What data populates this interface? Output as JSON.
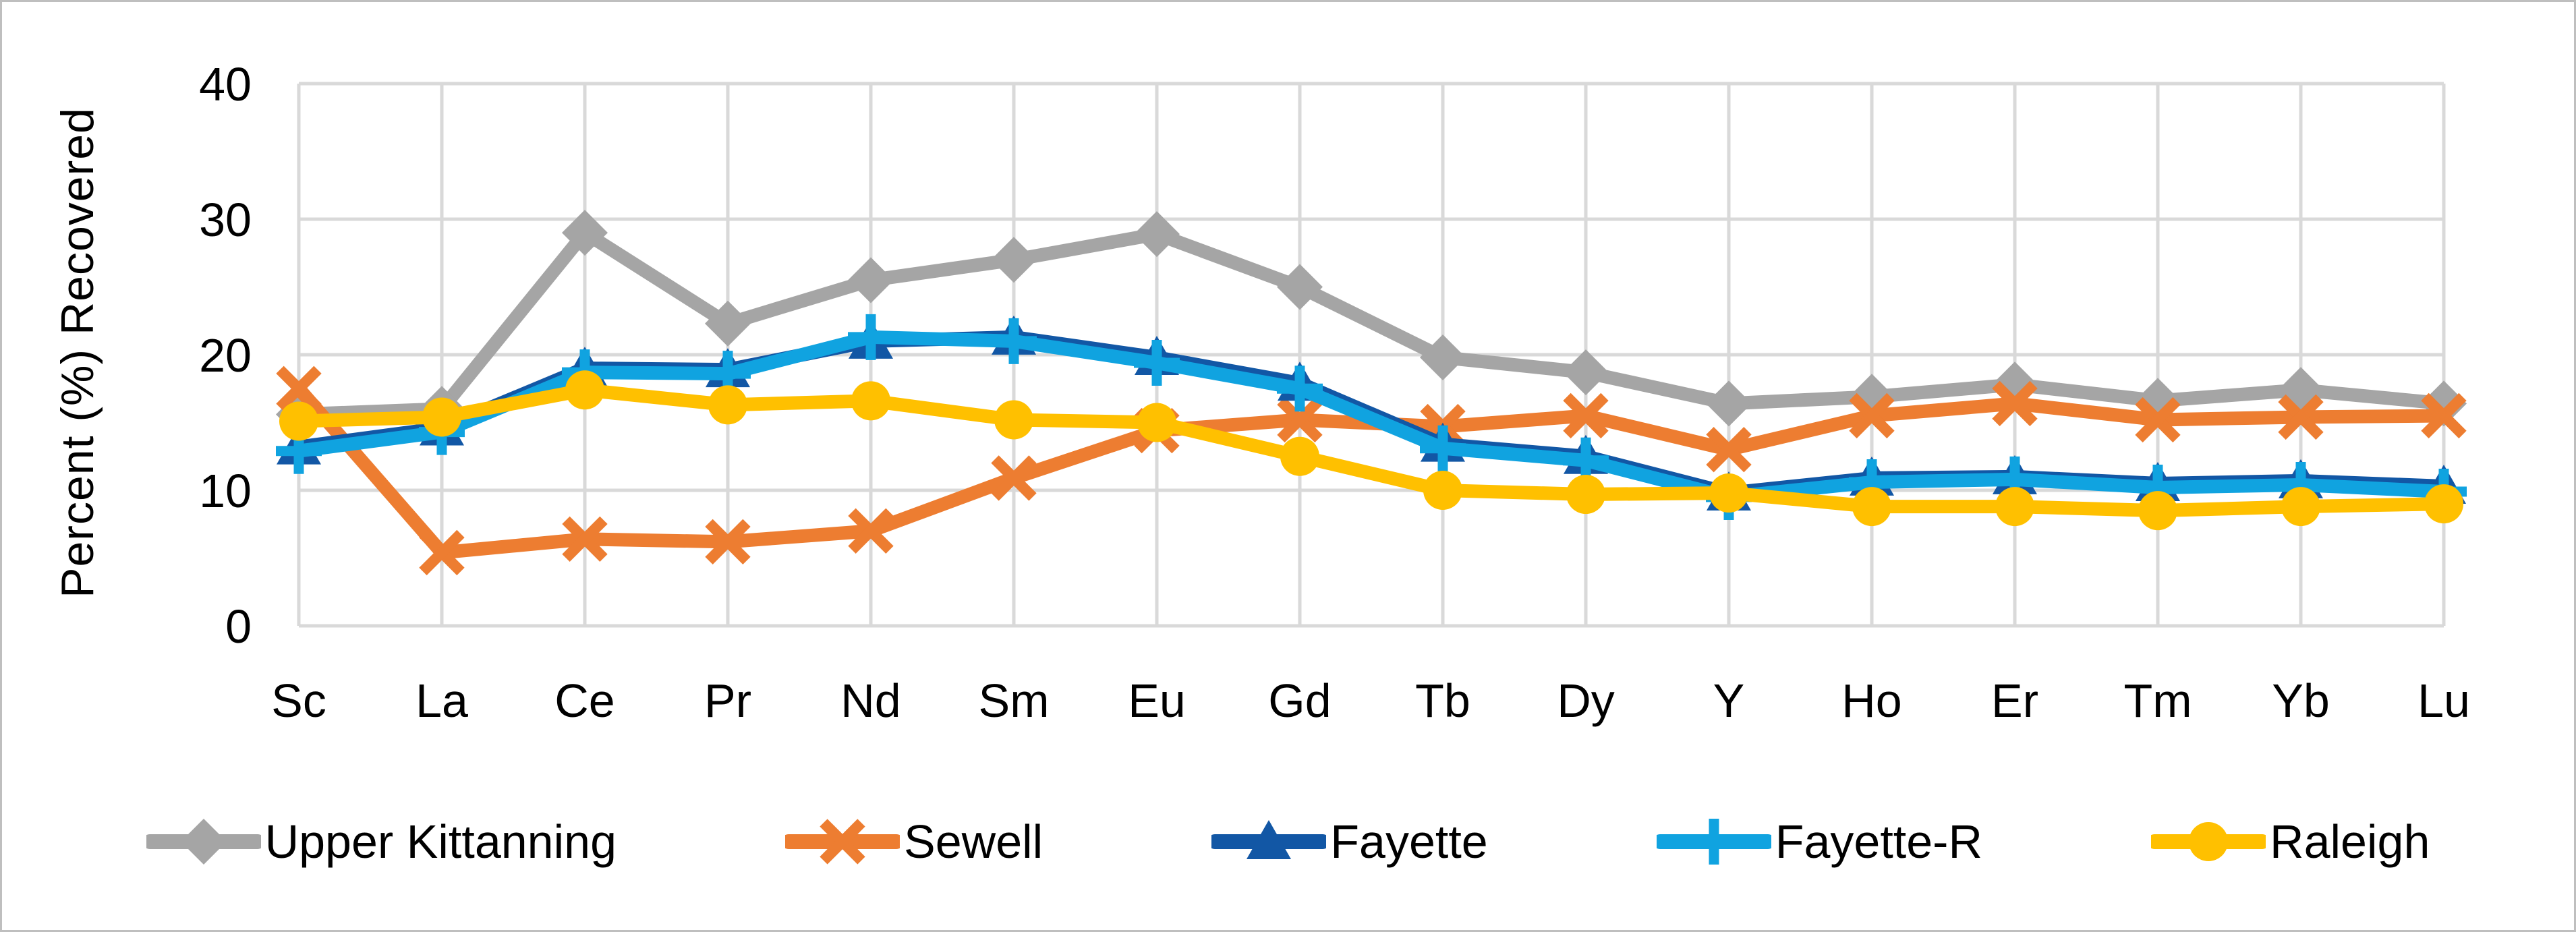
{
  "figure": {
    "background": "#ffffff",
    "border_color": "#bfbfbf"
  },
  "chart_data": {
    "type": "line",
    "title": "",
    "xlabel": "",
    "ylabel": "Percent (%) Recovered",
    "ylim": [
      0,
      40
    ],
    "yticks": [
      0,
      10,
      20,
      30,
      40
    ],
    "grid": true,
    "gridline_color": "#d9d9d9",
    "legend_position": "bottom",
    "categories": [
      "Sc",
      "La",
      "Ce",
      "Pr",
      "Nd",
      "Sm",
      "Eu",
      "Gd",
      "Tb",
      "Dy",
      "Y",
      "Ho",
      "Er",
      "Tm",
      "Yb",
      "Lu"
    ],
    "series": [
      {
        "name": "Upper Kittanning",
        "color": "#a5a5a5",
        "marker": "diamond",
        "values": [
          15.6,
          16.0,
          29.0,
          22.3,
          25.5,
          27.0,
          28.9,
          25.0,
          19.8,
          18.7,
          16.4,
          16.9,
          17.8,
          16.6,
          17.4,
          16.4
        ]
      },
      {
        "name": "Sewell",
        "color": "#ed7d31",
        "marker": "x",
        "values": [
          17.5,
          5.4,
          6.4,
          6.2,
          7.0,
          10.9,
          14.4,
          15.2,
          14.7,
          15.5,
          13.0,
          15.5,
          16.4,
          15.2,
          15.4,
          15.5
        ]
      },
      {
        "name": "Fayette",
        "color": "#1257a5",
        "marker": "triangle",
        "values": [
          13.2,
          14.6,
          19.0,
          18.9,
          21.0,
          21.3,
          19.8,
          17.9,
          13.4,
          12.5,
          9.8,
          10.9,
          11.0,
          10.5,
          10.7,
          10.3
        ]
      },
      {
        "name": "Fayette-R",
        "color": "#10a3e0",
        "marker": "plus",
        "values": [
          12.9,
          14.3,
          18.7,
          18.6,
          21.3,
          21.0,
          19.4,
          17.5,
          13.1,
          12.2,
          9.5,
          10.6,
          10.8,
          10.2,
          10.4,
          9.9
        ]
      },
      {
        "name": "Raleigh",
        "color": "#ffc000",
        "marker": "circle",
        "values": [
          15.1,
          15.4,
          17.4,
          16.3,
          16.6,
          15.2,
          15.0,
          12.5,
          10.0,
          9.7,
          9.8,
          8.8,
          8.8,
          8.5,
          8.8,
          9.0
        ]
      }
    ]
  }
}
